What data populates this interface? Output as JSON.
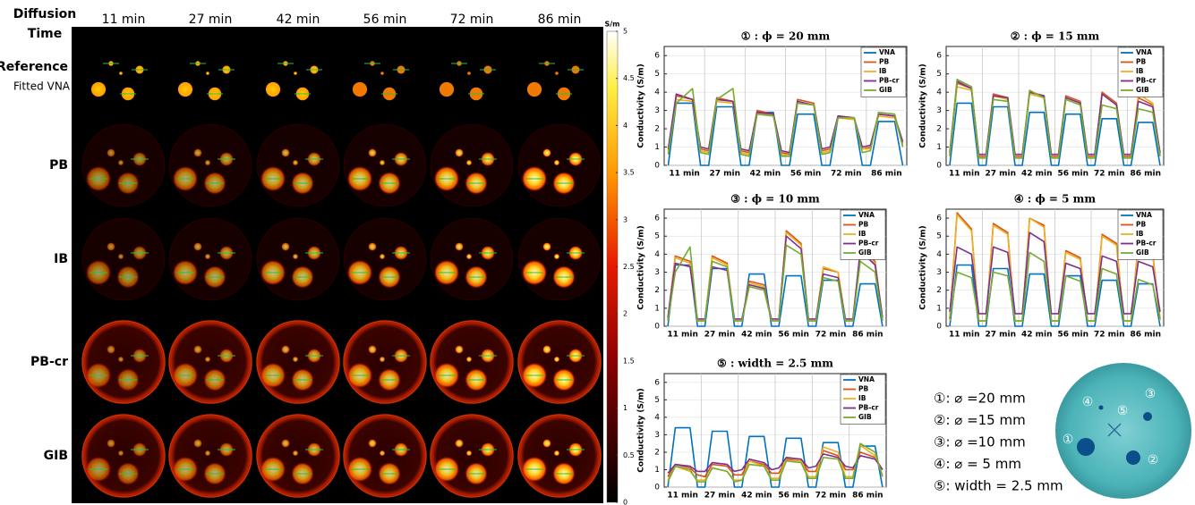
{
  "image_grid": {
    "header_lines": [
      "Diffusion",
      "Time"
    ],
    "columns": [
      "11 min",
      "27 min",
      "42 min",
      "56 min",
      "72 min",
      "86 min"
    ],
    "rows": [
      {
        "label": "Reference",
        "sublabel": "Fitted VNA"
      },
      {
        "label": "PB"
      },
      {
        "label": "IB"
      },
      {
        "label": "PB-cr"
      },
      {
        "label": "GIB"
      }
    ],
    "colorbar": {
      "label": "S/m",
      "lim": [
        0,
        5
      ],
      "ticks": [
        0,
        0.5,
        1,
        1.5,
        2,
        2.5,
        3,
        3.5,
        4,
        4.5,
        5
      ]
    }
  },
  "phantom": {
    "legend": [
      "①: ⌀ =20 mm",
      "②: ⌀ =15 mm",
      "③: ⌀ =10 mm",
      "④: ⌀ = 5  mm",
      "⑤: width = 2.5 mm"
    ],
    "markers": [
      "①",
      "②",
      "③",
      "④",
      "⑤"
    ]
  },
  "chart_data": [
    {
      "type": "line",
      "title": "① : ϕ = 20 mm",
      "y_label": "Conductivity (S/m)",
      "x": [
        0.1,
        0.3,
        0.7,
        0.9,
        1.1,
        1.3,
        1.7,
        1.9,
        2.1,
        2.3,
        2.7,
        2.9,
        3.1,
        3.3,
        3.7,
        3.9,
        4.1,
        4.3,
        4.7,
        4.9,
        5.1,
        5.3,
        5.7,
        5.9
      ],
      "xlim": [
        0,
        6
      ],
      "xticks": [
        {
          "value": 0.5,
          "label": "11 min"
        },
        {
          "value": 1.5,
          "label": "27 min"
        },
        {
          "value": 2.5,
          "label": "42 min"
        },
        {
          "value": 3.5,
          "label": "56 min"
        },
        {
          "value": 4.5,
          "label": "72 min"
        },
        {
          "value": 5.5,
          "label": "86 min"
        }
      ],
      "ylim": [
        0,
        6.5
      ],
      "yticks": [
        0,
        1,
        2,
        3,
        4,
        5,
        6
      ],
      "grid": true,
      "legend": "upper right",
      "series": [
        {
          "name": "VNA",
          "color": "#0072bd",
          "values": [
            0,
            3.4,
            3.4,
            0,
            0,
            3.2,
            3.2,
            0,
            0,
            2.9,
            2.9,
            0,
            0,
            2.8,
            2.8,
            0,
            0,
            2.6,
            2.6,
            0,
            0,
            2.4,
            2.4,
            0
          ]
        },
        {
          "name": "PB",
          "color": "#d95319",
          "values": [
            0.8,
            3.8,
            3.6,
            0.9,
            0.8,
            3.7,
            3.5,
            0.8,
            0.7,
            3.0,
            2.8,
            0.7,
            0.6,
            3.6,
            3.4,
            0.8,
            0.9,
            2.7,
            2.6,
            0.9,
            1.0,
            2.8,
            2.7,
            1.2
          ]
        },
        {
          "name": "IB",
          "color": "#edb120",
          "values": [
            0.7,
            3.6,
            3.5,
            0.8,
            0.7,
            3.5,
            3.4,
            0.7,
            0.6,
            2.9,
            2.7,
            0.6,
            0.5,
            3.4,
            3.3,
            0.7,
            0.8,
            2.6,
            2.5,
            0.9,
            0.9,
            2.7,
            2.6,
            1.1
          ]
        },
        {
          "name": "PB-cr",
          "color": "#7e2f8e",
          "values": [
            0.9,
            3.9,
            3.6,
            1.0,
            0.9,
            3.6,
            3.5,
            0.9,
            0.8,
            2.9,
            2.8,
            0.8,
            0.7,
            3.5,
            3.3,
            0.9,
            1.0,
            2.7,
            2.6,
            1.0,
            1.1,
            2.8,
            2.7,
            1.3
          ]
        },
        {
          "name": "GIB",
          "color": "#77ac30",
          "values": [
            0.6,
            3.4,
            4.2,
            0.7,
            0.6,
            3.6,
            4.2,
            0.6,
            0.5,
            2.8,
            2.7,
            0.5,
            0.5,
            3.4,
            3.3,
            0.6,
            0.7,
            2.6,
            2.6,
            0.7,
            0.8,
            2.9,
            2.8,
            1.0
          ]
        }
      ]
    },
    {
      "type": "line",
      "title": "② : ϕ = 15 mm",
      "y_label": "Conductivity (S/m)",
      "x": [
        0.1,
        0.3,
        0.7,
        0.9,
        1.1,
        1.3,
        1.7,
        1.9,
        2.1,
        2.3,
        2.7,
        2.9,
        3.1,
        3.3,
        3.7,
        3.9,
        4.1,
        4.3,
        4.7,
        4.9,
        5.1,
        5.3,
        5.7,
        5.9
      ],
      "xlim": [
        0,
        6
      ],
      "xticks": [
        {
          "value": 0.5,
          "label": "11 min"
        },
        {
          "value": 1.5,
          "label": "27 min"
        },
        {
          "value": 2.5,
          "label": "42 min"
        },
        {
          "value": 3.5,
          "label": "56 min"
        },
        {
          "value": 4.5,
          "label": "72 min"
        },
        {
          "value": 5.5,
          "label": "86 min"
        }
      ],
      "ylim": [
        0,
        6.5
      ],
      "yticks": [
        0,
        1,
        2,
        3,
        4,
        5,
        6
      ],
      "grid": true,
      "legend": "upper right",
      "series": [
        {
          "name": "VNA",
          "color": "#0072bd",
          "values": [
            0,
            3.4,
            3.4,
            0,
            0,
            3.2,
            3.2,
            0,
            0,
            2.9,
            2.9,
            0,
            0,
            2.8,
            2.8,
            0,
            0,
            2.55,
            2.55,
            0,
            0,
            2.35,
            2.35,
            0
          ]
        },
        {
          "name": "PB",
          "color": "#d95319",
          "values": [
            0.6,
            4.5,
            4.2,
            0.5,
            0.5,
            3.9,
            3.7,
            0.5,
            0.5,
            4.0,
            3.8,
            0.5,
            0.5,
            3.8,
            3.5,
            0.5,
            0.5,
            4.0,
            3.4,
            0.5,
            0.5,
            3.7,
            3.3,
            0.6
          ]
        },
        {
          "name": "IB",
          "color": "#edb120",
          "values": [
            0.5,
            4.3,
            4.1,
            0.4,
            0.4,
            3.8,
            3.6,
            0.4,
            0.4,
            3.9,
            3.7,
            0.4,
            0.4,
            3.7,
            3.4,
            0.4,
            0.4,
            3.9,
            3.3,
            0.4,
            0.4,
            3.9,
            3.4,
            0.5
          ]
        },
        {
          "name": "PB-cr",
          "color": "#7e2f8e",
          "values": [
            0.7,
            4.6,
            4.2,
            0.6,
            0.6,
            3.8,
            3.7,
            0.6,
            0.6,
            4.0,
            3.8,
            0.6,
            0.6,
            3.7,
            3.4,
            0.6,
            0.6,
            3.9,
            3.3,
            0.6,
            0.6,
            3.5,
            3.2,
            0.7
          ]
        },
        {
          "name": "GIB",
          "color": "#77ac30",
          "values": [
            0.5,
            4.7,
            4.3,
            0.4,
            0.4,
            3.6,
            3.5,
            0.4,
            0.4,
            4.1,
            3.7,
            0.4,
            0.4,
            3.6,
            3.3,
            0.4,
            0.4,
            3.3,
            3.1,
            0.4,
            0.4,
            3.1,
            2.9,
            0.5
          ]
        }
      ]
    },
    {
      "type": "line",
      "title": "③ : ϕ = 10 mm",
      "y_label": "Conductivity (S/m)",
      "x": [
        0.1,
        0.3,
        0.7,
        0.9,
        1.1,
        1.3,
        1.7,
        1.9,
        2.1,
        2.3,
        2.7,
        2.9,
        3.1,
        3.3,
        3.7,
        3.9,
        4.1,
        4.3,
        4.7,
        4.9,
        5.1,
        5.3,
        5.7,
        5.9
      ],
      "xlim": [
        0,
        6
      ],
      "xticks": [
        {
          "value": 0.5,
          "label": "11 min"
        },
        {
          "value": 1.5,
          "label": "27 min"
        },
        {
          "value": 2.5,
          "label": "42 min"
        },
        {
          "value": 3.5,
          "label": "56 min"
        },
        {
          "value": 4.5,
          "label": "72 min"
        },
        {
          "value": 5.5,
          "label": "86 min"
        }
      ],
      "ylim": [
        0,
        6.5
      ],
      "yticks": [
        0,
        1,
        2,
        3,
        4,
        5,
        6
      ],
      "grid": true,
      "legend": "upper right",
      "series": [
        {
          "name": "VNA",
          "color": "#0072bd",
          "values": [
            0,
            3.4,
            3.4,
            0,
            0,
            3.2,
            3.2,
            0,
            0,
            2.9,
            2.9,
            0,
            0,
            2.8,
            2.8,
            0,
            0,
            2.55,
            2.55,
            0,
            0,
            2.35,
            2.35,
            0
          ]
        },
        {
          "name": "PB",
          "color": "#d95319",
          "values": [
            0.4,
            3.9,
            3.6,
            0.3,
            0.3,
            3.9,
            3.5,
            0.3,
            0.3,
            2.5,
            2.3,
            0.3,
            0.3,
            5.3,
            4.6,
            0.3,
            0.3,
            3.2,
            3.0,
            0.3,
            0.3,
            4.2,
            3.6,
            0.4
          ]
        },
        {
          "name": "IB",
          "color": "#edb120",
          "values": [
            0.3,
            3.8,
            3.5,
            0.3,
            0.3,
            3.8,
            3.4,
            0.3,
            0.3,
            2.4,
            2.2,
            0.3,
            0.3,
            5.2,
            4.5,
            0.3,
            0.3,
            3.3,
            3.0,
            0.3,
            0.3,
            4.0,
            3.5,
            0.3
          ]
        },
        {
          "name": "PB-cr",
          "color": "#7e2f8e",
          "values": [
            0.5,
            3.5,
            3.3,
            0.4,
            0.4,
            3.3,
            3.1,
            0.4,
            0.4,
            2.3,
            2.1,
            0.4,
            0.4,
            5.0,
            4.3,
            0.4,
            0.4,
            2.9,
            2.7,
            0.4,
            0.4,
            4.2,
            3.4,
            0.5
          ]
        },
        {
          "name": "GIB",
          "color": "#77ac30",
          "values": [
            0.3,
            3.0,
            4.4,
            0.3,
            0.3,
            3.6,
            3.3,
            0.3,
            0.3,
            2.2,
            2.0,
            0.3,
            0.3,
            4.5,
            4.0,
            0.3,
            0.3,
            2.7,
            2.5,
            0.3,
            0.3,
            3.6,
            3.0,
            0.3
          ]
        }
      ]
    },
    {
      "type": "line",
      "title": "④ : ϕ = 5 mm",
      "y_label": "Conductivity (S/m)",
      "x": [
        0.1,
        0.3,
        0.7,
        0.9,
        1.1,
        1.3,
        1.7,
        1.9,
        2.1,
        2.3,
        2.7,
        2.9,
        3.1,
        3.3,
        3.7,
        3.9,
        4.1,
        4.3,
        4.7,
        4.9,
        5.1,
        5.3,
        5.7,
        5.9
      ],
      "xlim": [
        0,
        6
      ],
      "xticks": [
        {
          "value": 0.5,
          "label": "11 min"
        },
        {
          "value": 1.5,
          "label": "27 min"
        },
        {
          "value": 2.5,
          "label": "42 min"
        },
        {
          "value": 3.5,
          "label": "56 min"
        },
        {
          "value": 4.5,
          "label": "72 min"
        },
        {
          "value": 5.5,
          "label": "86 min"
        }
      ],
      "ylim": [
        0,
        6.5
      ],
      "yticks": [
        0,
        1,
        2,
        3,
        4,
        5,
        6
      ],
      "grid": true,
      "legend": "upper right",
      "series": [
        {
          "name": "VNA",
          "color": "#0072bd",
          "values": [
            0,
            3.4,
            3.4,
            0,
            0,
            3.2,
            3.2,
            0,
            0,
            2.9,
            2.9,
            0,
            0,
            2.8,
            2.8,
            0,
            0,
            2.55,
            2.55,
            0,
            0,
            2.35,
            2.35,
            0
          ]
        },
        {
          "name": "PB",
          "color": "#d95319",
          "values": [
            0.4,
            6.3,
            5.4,
            0.3,
            0.3,
            5.7,
            5.2,
            0.3,
            0.3,
            6.0,
            5.6,
            0.3,
            0.3,
            4.2,
            3.8,
            0.3,
            0.3,
            5.1,
            4.6,
            0.3,
            0.3,
            4.6,
            4.0,
            0.4
          ]
        },
        {
          "name": "IB",
          "color": "#edb120",
          "values": [
            0.3,
            6.2,
            5.3,
            0.3,
            0.3,
            5.6,
            5.1,
            0.3,
            0.3,
            6.0,
            5.5,
            0.3,
            0.3,
            4.1,
            3.7,
            0.3,
            0.3,
            5.0,
            4.5,
            0.3,
            0.3,
            4.5,
            3.9,
            0.3
          ]
        },
        {
          "name": "PB-cr",
          "color": "#7e2f8e",
          "values": [
            0.8,
            4.4,
            4.0,
            0.7,
            0.7,
            4.4,
            4.1,
            0.7,
            0.7,
            5.2,
            4.7,
            0.7,
            0.7,
            3.5,
            3.2,
            0.7,
            0.7,
            3.9,
            3.6,
            0.7,
            0.7,
            3.6,
            3.3,
            0.8
          ]
        },
        {
          "name": "GIB",
          "color": "#77ac30",
          "values": [
            0.4,
            3.0,
            2.7,
            0.3,
            0.3,
            3.0,
            2.8,
            0.3,
            0.3,
            4.1,
            3.6,
            0.3,
            0.3,
            2.8,
            2.5,
            0.3,
            0.3,
            3.2,
            2.9,
            0.3,
            0.3,
            2.6,
            2.3,
            0.4
          ]
        }
      ]
    },
    {
      "type": "line",
      "title": "⑤ : width = 2.5 mm",
      "y_label": "Conductivity (S/m)",
      "x": [
        0.1,
        0.3,
        0.7,
        0.9,
        1.1,
        1.3,
        1.7,
        1.9,
        2.1,
        2.3,
        2.7,
        2.9,
        3.1,
        3.3,
        3.7,
        3.9,
        4.1,
        4.3,
        4.7,
        4.9,
        5.1,
        5.3,
        5.7,
        5.9
      ],
      "xlim": [
        0,
        6
      ],
      "xticks": [
        {
          "value": 0.5,
          "label": "11 min"
        },
        {
          "value": 1.5,
          "label": "27 min"
        },
        {
          "value": 2.5,
          "label": "42 min"
        },
        {
          "value": 3.5,
          "label": "56 min"
        },
        {
          "value": 4.5,
          "label": "72 min"
        },
        {
          "value": 5.5,
          "label": "86 min"
        }
      ],
      "ylim": [
        0,
        6.5
      ],
      "yticks": [
        0,
        1,
        2,
        3,
        4,
        5,
        6
      ],
      "grid": true,
      "legend": "upper right",
      "series": [
        {
          "name": "VNA",
          "color": "#0072bd",
          "values": [
            0,
            3.4,
            3.4,
            0,
            0,
            3.2,
            3.2,
            0,
            0,
            2.9,
            2.9,
            0,
            0,
            2.8,
            2.8,
            0,
            0,
            2.55,
            2.55,
            0,
            0,
            2.35,
            2.35,
            0
          ]
        },
        {
          "name": "PB",
          "color": "#d95319",
          "values": [
            0.6,
            1.3,
            1.1,
            0.7,
            0.6,
            1.3,
            1.2,
            0.7,
            0.7,
            1.5,
            1.3,
            0.8,
            0.8,
            1.6,
            1.5,
            0.9,
            0.9,
            2.1,
            1.8,
            1.0,
            1.0,
            2.0,
            1.7,
            1.0
          ]
        },
        {
          "name": "IB",
          "color": "#edb120",
          "values": [
            0.4,
            1.2,
            0.9,
            0.4,
            0.4,
            1.1,
            0.9,
            0.4,
            0.4,
            1.5,
            1.2,
            0.5,
            0.5,
            1.7,
            1.5,
            0.6,
            0.6,
            2.3,
            2.0,
            0.6,
            0.6,
            2.4,
            1.8,
            0.7
          ]
        },
        {
          "name": "PB-cr",
          "color": "#7e2f8e",
          "values": [
            0.8,
            1.3,
            1.2,
            0.9,
            0.9,
            1.4,
            1.3,
            0.9,
            1.0,
            1.6,
            1.4,
            1.0,
            1.1,
            1.7,
            1.6,
            1.1,
            1.2,
            1.9,
            1.7,
            1.2,
            1.1,
            1.8,
            1.6,
            1.0
          ]
        },
        {
          "name": "GIB",
          "color": "#77ac30",
          "values": [
            0.3,
            1.2,
            1.0,
            0.3,
            0.3,
            1.1,
            0.9,
            0.3,
            0.4,
            1.3,
            1.2,
            0.4,
            0.4,
            1.5,
            1.4,
            0.5,
            0.5,
            1.7,
            1.6,
            0.5,
            0.5,
            2.5,
            2.0,
            0.6
          ]
        }
      ]
    }
  ]
}
